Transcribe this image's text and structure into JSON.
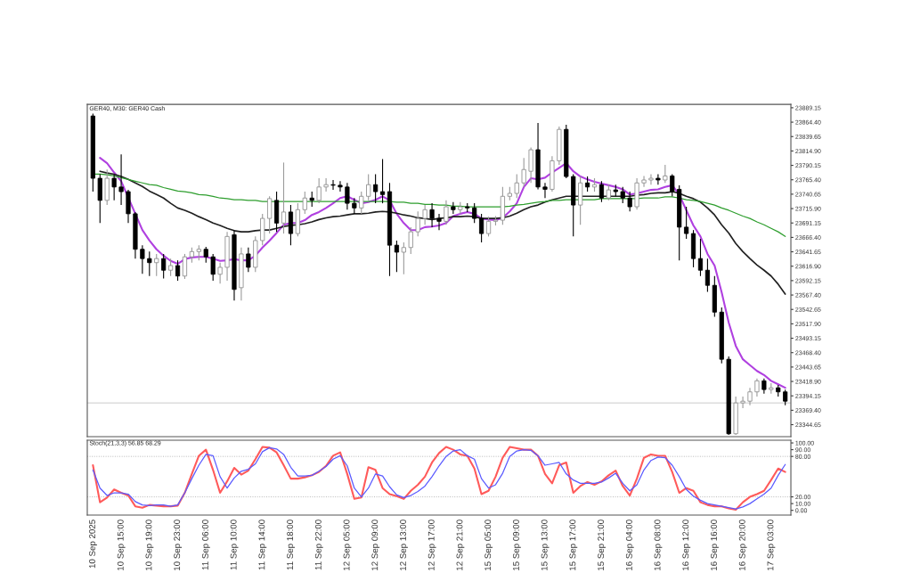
{
  "chart_data": [
    {
      "type": "candlestick",
      "title": "GER40, M30: GER40 Cash",
      "tick_labels": "y",
      "categories": [
        null,
        null,
        null,
        null,
        null,
        null,
        null,
        null,
        null,
        null,
        null,
        null,
        null,
        null,
        null,
        null,
        null,
        null,
        null,
        null,
        null,
        null,
        null,
        null,
        null,
        null,
        null,
        null,
        null,
        null,
        null,
        null,
        null,
        null,
        null,
        null,
        null,
        null,
        null,
        null,
        null,
        null,
        null,
        null,
        null,
        null,
        null,
        null,
        null,
        null,
        null,
        null,
        null,
        null,
        null,
        null,
        null,
        null,
        null,
        null,
        null,
        null,
        null,
        null,
        null,
        null,
        null,
        null,
        null,
        null,
        null,
        null,
        null,
        null,
        null,
        null,
        null,
        null,
        null,
        null,
        null,
        null,
        null,
        null,
        null,
        null,
        null,
        null,
        null,
        null,
        null,
        null,
        null,
        null,
        null,
        null,
        null,
        null,
        null
      ],
      "ohlc": [
        [
          23875,
          23879,
          23745,
          23768
        ],
        [
          23768,
          23775,
          23691,
          23730
        ],
        [
          23730,
          23783,
          23722,
          23768
        ],
        [
          23768,
          23775,
          23730,
          23753
        ],
        [
          23753,
          23809,
          23722,
          23745
        ],
        [
          23745,
          23748,
          23691,
          23707
        ],
        [
          23707,
          23710,
          23630,
          23646
        ],
        [
          23646,
          23653,
          23604,
          23630
        ],
        [
          23630,
          23642,
          23600,
          23623
        ],
        [
          23623,
          23638,
          23600,
          23630
        ],
        [
          23630,
          23638,
          23596,
          23610
        ],
        [
          23610,
          23630,
          23600,
          23618
        ],
        [
          23618,
          23627,
          23592,
          23600
        ],
        [
          23600,
          23638,
          23595,
          23633
        ],
        [
          23633,
          23649,
          23623,
          23642
        ],
        [
          23642,
          23653,
          23627,
          23646
        ],
        [
          23646,
          23650,
          23623,
          23633
        ],
        [
          23633,
          23638,
          23592,
          23603
        ],
        [
          23603,
          23623,
          23587,
          23615
        ],
        [
          23615,
          23676,
          23592,
          23668
        ],
        [
          23671,
          23679,
          23558,
          23577
        ],
        [
          23580,
          23649,
          23558,
          23638
        ],
        [
          23638,
          23649,
          23607,
          23615
        ],
        [
          23615,
          23668,
          23607,
          23661
        ],
        [
          23661,
          23707,
          23653,
          23699
        ],
        [
          23699,
          23737,
          23673,
          23733
        ],
        [
          23730,
          23745,
          23676,
          23691
        ],
        [
          23691,
          23795,
          23673,
          23710
        ],
        [
          23710,
          23722,
          23653,
          23673
        ],
        [
          23673,
          23725,
          23668,
          23714
        ],
        [
          23714,
          23745,
          23707,
          23734
        ],
        [
          23734,
          23745,
          23719,
          23730
        ],
        [
          23730,
          23768,
          23725,
          23753
        ],
        [
          23753,
          23768,
          23745,
          23757
        ],
        [
          23757,
          23765,
          23748,
          23756
        ],
        [
          23756,
          23763,
          23745,
          23753
        ],
        [
          23753,
          23760,
          23714,
          23725
        ],
        [
          23725,
          23734,
          23707,
          23717
        ],
        [
          23717,
          23745,
          23707,
          23737
        ],
        [
          23737,
          23775,
          23730,
          23757
        ],
        [
          23757,
          23775,
          23725,
          23745
        ],
        [
          23745,
          23801,
          23725,
          23740
        ],
        [
          23745,
          23760,
          23600,
          23653
        ],
        [
          23653,
          23661,
          23607,
          23641
        ],
        [
          23641,
          23658,
          23603,
          23649
        ],
        [
          23649,
          23684,
          23638,
          23676
        ],
        [
          23676,
          23711,
          23668,
          23699
        ],
        [
          23699,
          23722,
          23688,
          23714
        ],
        [
          23714,
          23725,
          23684,
          23699
        ],
        [
          23699,
          23707,
          23679,
          23694
        ],
        [
          23694,
          23730,
          23688,
          23719
        ],
        [
          23719,
          23727,
          23707,
          23714
        ],
        [
          23714,
          23727,
          23707,
          23719
        ],
        [
          23719,
          23725,
          23710,
          23717
        ],
        [
          23717,
          23725,
          23691,
          23699
        ],
        [
          23699,
          23707,
          23658,
          23673
        ],
        [
          23673,
          23702,
          23668,
          23694
        ],
        [
          23694,
          23703,
          23687,
          23696
        ],
        [
          23696,
          23753,
          23688,
          23737
        ],
        [
          23737,
          23753,
          23730,
          23742
        ],
        [
          23742,
          23775,
          23734,
          23760
        ],
        [
          23760,
          23803,
          23753,
          23783
        ],
        [
          23780,
          23821,
          23760,
          23817
        ],
        [
          23817,
          23863,
          23749,
          23753
        ],
        [
          23753,
          23760,
          23734,
          23749
        ],
        [
          23749,
          23806,
          23745,
          23798
        ],
        [
          23798,
          23857,
          23791,
          23852
        ],
        [
          23852,
          23860,
          23768,
          23771
        ],
        [
          23771,
          23775,
          23668,
          23722
        ],
        [
          23722,
          23771,
          23688,
          23760
        ],
        [
          23760,
          23771,
          23745,
          23753
        ],
        [
          23753,
          23768,
          23745,
          23757
        ],
        [
          23757,
          23763,
          23727,
          23734
        ],
        [
          23734,
          23757,
          23730,
          23748
        ],
        [
          23748,
          23757,
          23737,
          23745
        ],
        [
          23745,
          23753,
          23725,
          23734
        ],
        [
          23734,
          23745,
          23711,
          23719
        ],
        [
          23719,
          23768,
          23714,
          23760
        ],
        [
          23760,
          23772,
          23753,
          23765
        ],
        [
          23765,
          23775,
          23757,
          23768
        ],
        [
          23768,
          23775,
          23757,
          23765
        ],
        [
          23765,
          23791,
          23760,
          23772
        ],
        [
          23772,
          23775,
          23737,
          23745
        ],
        [
          23749,
          23756,
          23627,
          23684
        ],
        [
          23684,
          23719,
          23664,
          23673
        ],
        [
          23673,
          23679,
          23615,
          23630
        ],
        [
          23630,
          23664,
          23600,
          23610
        ],
        [
          23610,
          23630,
          23573,
          23584
        ],
        [
          23584,
          23600,
          23530,
          23538
        ],
        [
          23538,
          23546,
          23450,
          23457
        ],
        [
          23457,
          23462,
          23327,
          23329
        ],
        [
          23329,
          23393,
          23327,
          23382
        ],
        [
          23382,
          23393,
          23373,
          23385
        ],
        [
          23385,
          23408,
          23378,
          23401
        ],
        [
          23401,
          23424,
          23393,
          23420
        ],
        [
          23420,
          23424,
          23398,
          23405
        ],
        [
          23405,
          23416,
          23398,
          23408
        ],
        [
          23408,
          23413,
          23393,
          23401
        ],
        [
          23401,
          23405,
          23378,
          23385
        ]
      ],
      "series": [
        {
          "type": "line",
          "color": "#b040e0",
          "values": [
            null,
            23803,
            23794,
            23778,
            23763,
            null,
            23707,
            23679,
            23661,
            23646,
            23635,
            23626,
            23621,
            23629,
            23632,
            23633,
            23633,
            23630,
            23626,
            23627,
            23629,
            23627,
            23627,
            23635,
            23649,
            23661,
            23674,
            23688,
            23691,
            23691,
            23696,
            23705,
            23710,
            23717,
            23725,
            23734,
            23737,
            23731,
            23725,
            23727,
            23731,
            23737,
            23730,
            23707,
            23691,
            23679,
            23679,
            23684,
            23685,
            23687,
            23691,
            23703,
            23707,
            23710,
            23707,
            23699,
            23697,
            23696,
            23700,
            23711,
            23725,
            23753,
            23768,
            23766,
            23769,
            23778,
            23786,
            23794,
            23780,
            23771,
            23766,
            23762,
            23759,
            23756,
            23753,
            23749,
            23740,
            23742,
            23745,
            23748,
            23749,
            23753,
            23756,
            23740,
            23713,
            23687,
            23668,
            23638,
            23618,
            23572,
            23520,
            23480,
            23457,
            23447,
            23437,
            23430,
            23420,
            23414,
            23408
          ]
        },
        {
          "type": "line",
          "color": "#202020",
          "values": [
            null,
            23780,
            23777,
            23775,
            23771,
            23766,
            23760,
            23754,
            23746,
            23740,
            23734,
            23725,
            23717,
            23713,
            23708,
            23702,
            23697,
            23691,
            23687,
            23682,
            23678,
            23676,
            23676,
            23678,
            23679,
            23679,
            23682,
            23685,
            23687,
            23688,
            23690,
            23693,
            23697,
            23700,
            23702,
            23703,
            23705,
            23707,
            23707,
            23708,
            23710,
            23711,
            23710,
            23708,
            23705,
            23703,
            23700,
            23699,
            23697,
            23699,
            23700,
            23702,
            23702,
            23703,
            23702,
            23699,
            23699,
            23699,
            23700,
            23703,
            23708,
            23714,
            23719,
            23722,
            23727,
            23731,
            23734,
            23737,
            23737,
            23737,
            23737,
            23737,
            23737,
            23737,
            23737,
            23737,
            23737,
            23739,
            23740,
            23742,
            23743,
            23743,
            23745,
            23742,
            23737,
            23733,
            23727,
            23717,
            23705,
            23688,
            23674,
            23656,
            23642,
            23630,
            23619,
            23610,
            23600,
            23586,
            23569
          ]
        },
        {
          "type": "line",
          "color": "#2e9e2e",
          "values": [
            23775,
            23775,
            23774,
            23772,
            23769,
            23766,
            23763,
            23760,
            23757,
            23756,
            23752,
            23749,
            23746,
            23745,
            23743,
            23740,
            23739,
            23737,
            23734,
            23733,
            23731,
            23731,
            23730,
            23730,
            23728,
            23728,
            23728,
            23728,
            23728,
            23728,
            23728,
            23728,
            23728,
            23728,
            23728,
            23728,
            23728,
            23728,
            23728,
            23728,
            23728,
            23728,
            23728,
            23727,
            23727,
            23725,
            23725,
            23723,
            23723,
            23722,
            23722,
            23720,
            23720,
            23719,
            23719,
            23719,
            23719,
            23719,
            23719,
            23720,
            23722,
            23723,
            23725,
            23727,
            23728,
            23730,
            23730,
            23731,
            23731,
            23731,
            23731,
            23731,
            23733,
            23733,
            23733,
            23733,
            23733,
            23733,
            23734,
            23734,
            23734,
            23736,
            23736,
            23734,
            23731,
            23730,
            23728,
            23725,
            23722,
            23717,
            23713,
            23708,
            23703,
            23699,
            23693,
            23688,
            23682,
            23676,
            23668
          ]
        }
      ],
      "ref_lines": [
        {
          "axis": "y",
          "value": 23382,
          "color": "#c8c8c8",
          "line_style": "solid"
        }
      ],
      "ylim": [
        23324,
        23895
      ],
      "yticks": [
        23889.15,
        {
          "value": 23864.4,
          "label": "23864.40"
        },
        23839.65,
        {
          "value": 23814.9,
          "label": "23814.90"
        },
        23790.15,
        {
          "value": 23765.4,
          "label": "23765.40"
        },
        23740.65,
        {
          "value": 23715.9,
          "label": "23715.90"
        },
        23691.15,
        {
          "value": 23666.4,
          "label": "23666.40"
        },
        23641.65,
        {
          "value": 23616.9,
          "label": "23616.90"
        },
        23592.15,
        {
          "value": 23567.4,
          "label": "23567.40"
        },
        23542.65,
        {
          "value": 23517.9,
          "label": "23517.90"
        },
        23493.15,
        {
          "value": 23468.4,
          "label": "23468.40"
        },
        23443.65,
        {
          "value": 23418.9,
          "label": "23418.90"
        },
        23394.15,
        {
          "value": 23369.4,
          "label": "23369.40"
        },
        23344.65
      ]
    },
    {
      "type": "line",
      "title": "Stoch(21,3,3) 56.85 68.29",
      "categories": [
        "10 Sep 2025",
        null,
        null,
        null,
        "10 Sep 15:00",
        null,
        null,
        null,
        "10 Sep 19:00",
        null,
        null,
        null,
        "10 Sep 23:00",
        null,
        null,
        null,
        "11 Sep 06:00",
        null,
        null,
        null,
        "11 Sep 10:00",
        null,
        null,
        null,
        "11 Sep 14:00",
        null,
        null,
        null,
        "11 Sep 18:00",
        null,
        null,
        null,
        "11 Sep 22:00",
        null,
        null,
        null,
        "12 Sep 05:00",
        null,
        null,
        null,
        "12 Sep 09:00",
        null,
        null,
        null,
        "12 Sep 13:00",
        null,
        null,
        null,
        "12 Sep 17:00",
        null,
        null,
        null,
        "12 Sep 21:00",
        null,
        null,
        null,
        "15 Sep 05:00",
        null,
        null,
        null,
        "15 Sep 09:00",
        null,
        null,
        null,
        "15 Sep 13:00",
        null,
        null,
        null,
        "15 Sep 17:00",
        null,
        null,
        null,
        "15 Sep 21:00",
        null,
        null,
        null,
        "16 Sep 04:00",
        null,
        null,
        null,
        "16 Sep 08:00",
        null,
        null,
        null,
        "16 Sep 12:00",
        null,
        null,
        null,
        "16 Sep 16:00",
        null,
        null,
        null,
        "16 Sep 20:00",
        null,
        null,
        null,
        "17 Sep 03:00",
        null,
        null
      ],
      "series": [
        {
          "color": "#ff5a5a",
          "values": [
            67,
            12,
            19,
            31,
            26,
            22,
            6,
            4,
            8,
            7,
            6,
            6,
            7,
            26,
            54,
            81,
            90,
            60,
            26,
            43,
            63,
            53,
            59,
            76,
            94,
            93,
            86,
            67,
            47,
            47,
            49,
            52,
            57,
            66,
            81,
            86,
            54,
            17,
            19,
            64,
            60,
            33,
            24,
            21,
            17,
            29,
            38,
            50,
            71,
            85,
            94,
            90,
            83,
            81,
            62,
            24,
            29,
            50,
            78,
            94,
            92,
            90,
            90,
            81,
            54,
            40,
            67,
            71,
            26,
            36,
            42,
            38,
            43,
            52,
            59,
            36,
            22,
            47,
            78,
            83,
            81,
            81,
            57,
            26,
            33,
            29,
            12,
            8,
            6,
            6,
            3,
            1,
            12,
            20,
            24,
            29,
            45,
            62,
            57
          ]
        },
        {
          "color": "#5a5aff",
          "values": [
            60,
            33,
            22,
            26,
            26,
            24,
            13,
            8,
            7,
            8,
            8,
            6,
            8,
            26,
            47,
            67,
            83,
            81,
            50,
            33,
            48,
            58,
            61,
            69,
            87,
            93,
            91,
            83,
            64,
            51,
            51,
            52,
            58,
            65,
            76,
            81,
            66,
            33,
            20,
            33,
            54,
            51,
            35,
            23,
            19,
            22,
            28,
            36,
            50,
            66,
            80,
            88,
            90,
            81,
            76,
            47,
            33,
            38,
            55,
            80,
            88,
            90,
            89,
            81,
            67,
            69,
            71,
            54,
            45,
            40,
            40,
            40,
            42,
            48,
            55,
            40,
            29,
            38,
            60,
            74,
            79,
            78,
            67,
            50,
            31,
            21,
            15,
            10,
            8,
            6,
            4,
            2,
            5,
            10,
            17,
            24,
            33,
            52,
            68
          ]
        }
      ],
      "line_style": "solid",
      "ref_lines": [
        {
          "axis": "y",
          "value": 80,
          "color": "#b4b4b4",
          "line_style": "dotted"
        },
        {
          "axis": "y",
          "value": 20,
          "color": "#b4b4b4",
          "line_style": "dotted"
        }
      ],
      "ylim": [
        -7,
        104
      ],
      "yticks": [
        {
          "value": 100,
          "label": "100.00"
        },
        {
          "value": 90,
          "label": "90.00"
        },
        {
          "value": 80,
          "label": "80.00"
        },
        {
          "value": 20,
          "label": "20.00"
        },
        {
          "value": 10,
          "label": "10.00"
        },
        {
          "value": 0,
          "label": "0.00"
        }
      ]
    }
  ]
}
